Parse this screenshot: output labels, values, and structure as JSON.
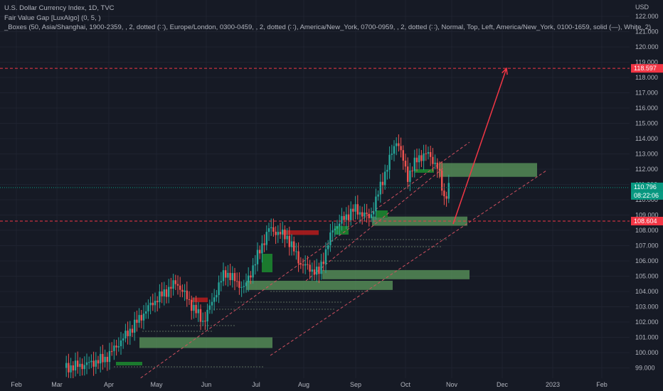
{
  "header": {
    "symbol_line": "U.S. Dollar Currency Index, 1D, TVC",
    "indicator_1": "Fair Value Gap [LuxAlgo] (0, 5, )",
    "indicator_2": "_Boxes (50, Asia/Shanghai, 1900-2359, , 2, dotted (∷), Europe/London, 0300-0459, , 2, dotted (∷), America/New_York, 0700-0959, , 2, dotted (∷), Normal, Top, Left, America/New_York, 0100-1659, solid (—), White, 2)"
  },
  "price_axis": {
    "currency": "USD",
    "ticks": [
      "122.000",
      "121.000",
      "120.000",
      "119.000",
      "118.000",
      "117.000",
      "116.000",
      "115.000",
      "114.000",
      "113.000",
      "112.000",
      "111.000",
      "110.000",
      "109.000",
      "108.000",
      "107.000",
      "106.000",
      "105.000",
      "104.000",
      "103.000",
      "102.000",
      "101.000",
      "100.000",
      "99.000"
    ],
    "tick_values": [
      122,
      121,
      120,
      119,
      118,
      117,
      116,
      115,
      114,
      113,
      112,
      111,
      110,
      109,
      108,
      107,
      106,
      105,
      104,
      103,
      102,
      101,
      100,
      99
    ]
  },
  "time_axis": {
    "labels": [
      "Feb",
      "Mar",
      "Apr",
      "May",
      "Jun",
      "Jul",
      "Aug",
      "Sep",
      "Oct",
      "Nov",
      "Dec",
      "2023",
      "Feb"
    ]
  },
  "price_tags": [
    {
      "label": "118.597",
      "value": 118.597,
      "color": "#f23645"
    },
    {
      "label": "110.796",
      "value": 110.796,
      "color": "#089981"
    },
    {
      "label": "08:22:06",
      "value": 110.796,
      "color": "#089981"
    },
    {
      "label": "108.604",
      "value": 108.604,
      "color": "#f23645"
    }
  ],
  "colors": {
    "background": "#161a25",
    "up": "#26a69a",
    "down": "#ef5350",
    "fvg_green": "#5c9a5c",
    "fvg_red": "#b71c1c",
    "target_line": "#f23645",
    "current_line": "#089981"
  },
  "chart_data": {
    "type": "candlestick",
    "title": "U.S. Dollar Currency Index, 1D, TVC",
    "xlabel": "",
    "ylabel": "USD",
    "ylim": [
      98.5,
      122.3
    ],
    "x_axis_labels": [
      "Feb",
      "Mar",
      "Apr",
      "May",
      "Jun",
      "Jul",
      "Aug",
      "Sep",
      "Oct",
      "Nov",
      "Dec",
      "2023",
      "Feb"
    ],
    "horizontal_levels": [
      118.597,
      108.604
    ],
    "current_price": 110.796,
    "countdown": "08:22:06",
    "key_points": [
      {
        "date": "Mar",
        "close": 99.0
      },
      {
        "date": "Apr",
        "close": 99.8
      },
      {
        "date": "May",
        "close": 103.0
      },
      {
        "date": "Jun",
        "close": 102.2
      },
      {
        "date": "Jul",
        "close": 108.0
      },
      {
        "date": "Aug",
        "close": 106.0
      },
      {
        "date": "Sep",
        "close": 109.6
      },
      {
        "date": "late Sep",
        "close": 114.1
      },
      {
        "date": "Oct",
        "close": 111.2
      },
      {
        "date": "Oct",
        "close": 113.0
      },
      {
        "date": "late Oct",
        "close": 110.8
      }
    ],
    "projection": {
      "from": 108.6,
      "to": 118.597,
      "annotation": "arrow"
    },
    "fvg_zones": [
      {
        "low": 111.5,
        "high": 112.4,
        "type": "bullish"
      },
      {
        "low": 108.3,
        "high": 108.9,
        "type": "bullish"
      },
      {
        "low": 104.8,
        "high": 105.4,
        "type": "bullish"
      },
      {
        "low": 104.1,
        "high": 104.7,
        "type": "bullish"
      },
      {
        "low": 100.3,
        "high": 101.0,
        "type": "bullish"
      },
      {
        "low": 107.7,
        "high": 108.0,
        "type": "bearish"
      },
      {
        "low": 103.3,
        "high": 103.6,
        "type": "bearish"
      }
    ]
  }
}
